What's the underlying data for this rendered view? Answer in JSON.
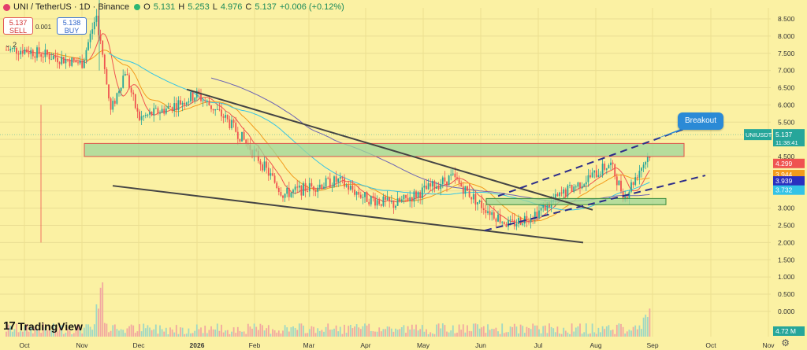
{
  "header": {
    "title": "UNI / TetherUS · 1D · Binance",
    "open_label": "O",
    "open": "5.131",
    "high_label": "H",
    "high": "5.253",
    "low_label": "L",
    "low": "4.976",
    "close_label": "C",
    "close": "5.137",
    "change": "+0.006 (+0.12%)"
  },
  "trade": {
    "sell_price": "5.137",
    "sell_label": "SELL",
    "buy_price": "5.138",
    "buy_label": "BUY",
    "spread": "0.001"
  },
  "indicators_toggle": "2",
  "brand": "TradingView",
  "annotation": "Breakout",
  "colors": {
    "background": "#fbf1a3",
    "up": "#26a69a",
    "down": "#ef5350",
    "resistance_box": "#9fd69a",
    "callout": "#2b8ad6"
  },
  "chart_data": {
    "type": "candlestick",
    "symbol": "UNI / TetherUS",
    "interval": "1D",
    "exchange": "Binance",
    "ylim": [
      -0.3,
      9.0
    ],
    "y_ticks": [
      8.5,
      8.0,
      7.5,
      7.0,
      6.5,
      6.0,
      5.5,
      5.0,
      4.5,
      4.0,
      3.5,
      3.0,
      2.5,
      2.0,
      1.5,
      1.0,
      0.5,
      0.0
    ],
    "y_tick_labels": [
      "8.500",
      "8.000",
      "7.500",
      "7.000",
      "6.500",
      "6.000",
      "5.500",
      "5.000",
      "4.500",
      "4.000",
      "3.500",
      "3.000",
      "2.500",
      "2.000",
      "1.500",
      "1.000",
      "0.500",
      "0.000"
    ],
    "x_labels": [
      "Oct",
      "Nov",
      "Dec",
      "2026",
      "Feb",
      "Mar",
      "Apr",
      "May",
      "Jun",
      "Jul",
      "Aug",
      "Sep",
      "Oct",
      "Nov"
    ],
    "price_waypoints": [
      [
        "Oct",
        7.6
      ],
      [
        "Nov",
        7.2
      ],
      [
        "Nov",
        8.6
      ],
      [
        "Nov",
        5.8
      ],
      [
        "Nov",
        7.0
      ],
      [
        "Dec",
        5.6
      ],
      [
        "Dec",
        5.9
      ],
      [
        "2026",
        6.3
      ],
      [
        "2026",
        5.6
      ],
      [
        "Feb",
        4.6
      ],
      [
        "Feb",
        3.4
      ],
      [
        "Mar",
        3.6
      ],
      [
        "Mar",
        3.8
      ],
      [
        "Apr",
        3.3
      ],
      [
        "Apr",
        3.1
      ],
      [
        "May",
        3.5
      ],
      [
        "May",
        3.9
      ],
      [
        "Jun",
        3.1
      ],
      [
        "Jun",
        2.5
      ],
      [
        "Jul",
        2.9
      ],
      [
        "Jul",
        3.5
      ],
      [
        "Aug",
        4.0
      ],
      [
        "Aug",
        4.3
      ],
      [
        "Aug",
        3.3
      ],
      [
        "Aug",
        4.1
      ],
      [
        "Sep",
        4.7
      ],
      [
        "Sep",
        5.137
      ]
    ],
    "price_labels": [
      {
        "value": 5.137,
        "text": "5.137",
        "name": "UNIUSDT",
        "time": "11:38:41",
        "color": "#26a69a"
      },
      {
        "value": 4.299,
        "text": "4.299",
        "color": "#ef5350"
      },
      {
        "value": 3.944,
        "text": "3.944",
        "color": "#f39b1c"
      },
      {
        "value": 3.939,
        "text": "3.939",
        "color": "#2a2fbf"
      },
      {
        "value": 3.732,
        "text": "3.732",
        "color": "#33c3e6"
      }
    ],
    "volume_label": "4.72 M",
    "annotations": {
      "resistance_box": [
        4.5,
        4.88
      ],
      "support_box": [
        3.1,
        3.28
      ],
      "breakout_text": "Breakout"
    }
  }
}
